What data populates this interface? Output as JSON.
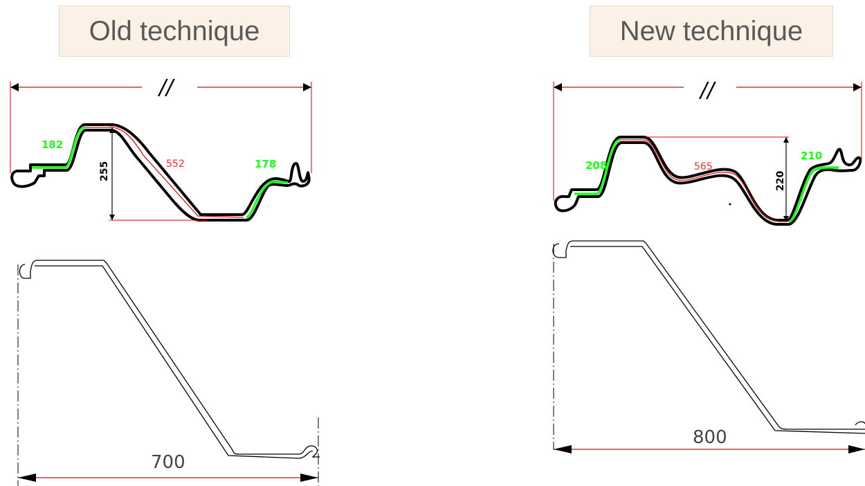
{
  "old_technique": {
    "title": "Old technique",
    "break_mark": "//",
    "top_profile": {
      "left_flange": "182",
      "web": "552",
      "height": "255",
      "right_flange": "178"
    },
    "bottom_width": "700"
  },
  "new_technique": {
    "title": "New technique",
    "break_mark": "//",
    "top_profile": {
      "left_flange": "208",
      "web": "565",
      "height": "220",
      "right_flange": "210"
    },
    "bottom_width": "800"
  },
  "colors": {
    "dimension_line": "#e60000",
    "flange_highlight": "#1aff1a",
    "profile_outline": "#000000"
  }
}
